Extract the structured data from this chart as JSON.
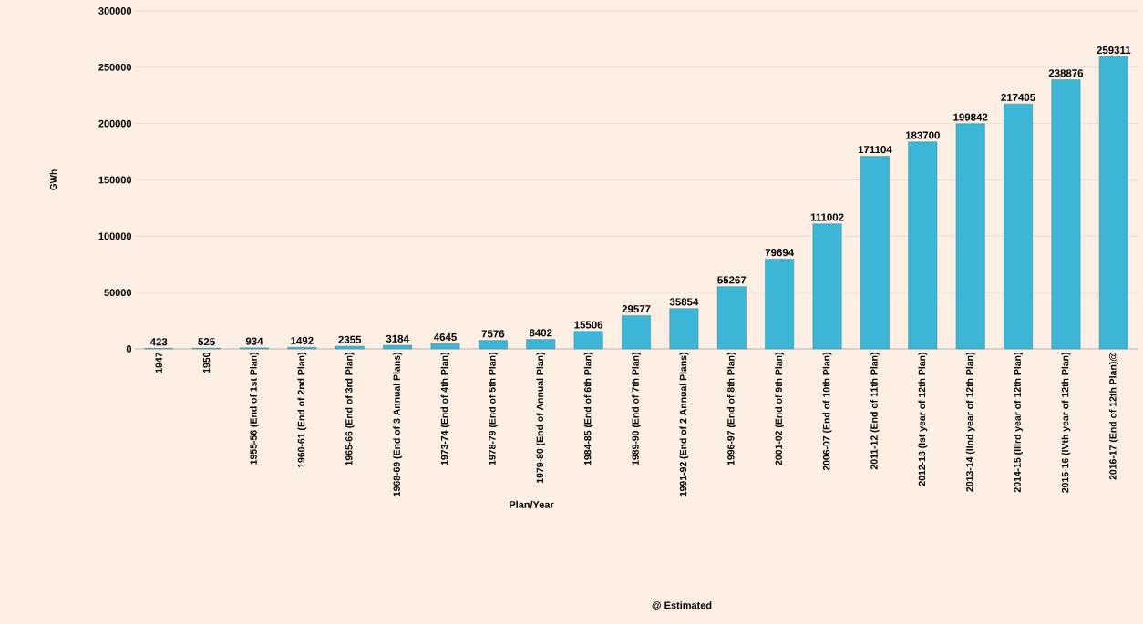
{
  "chart_data": {
    "type": "bar",
    "ylabel": "GWh",
    "xlabel": "Plan/Year",
    "annotations": [
      "@ Estimated"
    ],
    "categories": [
      "1947",
      "1950",
      "1955-56 (End of 1st Plan)",
      "1960-61 (End of 2nd Plan)",
      "1965-66 (End of 3rd Plan)",
      "1968-69 (End of 3 Annual Plans)",
      "1973-74 (End of 4th Plan)",
      "1978-79 (End of 5th Plan)",
      "1979-80 (End of Annual Plan)",
      "1984-85 (End of 6th Plan)",
      "1989-90 (End of 7th Plan)",
      "1991-92 (End of 2 Annual Plans)",
      "1996-97 (End of 8th Plan)",
      "2001-02 (End of 9th Plan)",
      "2006-07 (End of 10th Plan)",
      "2011-12 (End of 11th Plan)",
      "2012-13 (Ist year of 12th Plan)",
      "2013-14 (IInd year of 12th Plan)",
      "2014-15 (IIIrd year of 12th Plan)",
      "2015-16 (IVth year of 12th Plan)",
      "2016-17 (End of 12th Plan)@"
    ],
    "values": [
      423,
      525,
      934,
      1492,
      2355,
      3184,
      4645,
      7576,
      8402,
      15506,
      29577,
      35854,
      55267,
      79694,
      111002,
      171104,
      183700,
      199842,
      217405,
      238876,
      259311
    ],
    "color": "#3db5d6",
    "ylim": [
      0,
      300000
    ],
    "yticks": [
      0,
      50000,
      100000,
      150000,
      200000,
      250000,
      300000
    ],
    "grid": "y",
    "data_labels": true
  }
}
